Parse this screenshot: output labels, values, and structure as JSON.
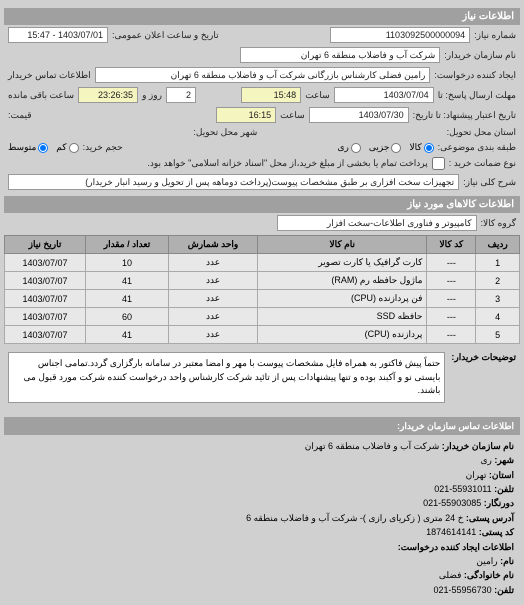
{
  "header": {
    "title": "اطلاعات نیاز"
  },
  "fields": {
    "request_no_label": "شماره نیاز:",
    "request_no": "1103092500000094",
    "public_date_label": "تاریخ و ساعت اعلان عمومی:",
    "public_date": "1403/07/01 - 15:47",
    "buyer_name_label": "نام سازمان خریدار:",
    "buyer_name": "شرکت آب و فاضلاب منطقه 6 تهران",
    "requester_label": "ایجاد کننده درخواست:",
    "requester": "رامین  فضلی کارشناس بازرگانی شرکت آب و فاضلاب منطقه 6 تهران",
    "contact_label": "اطلاعات تماس خریدار",
    "deadline_send_label": "مهلت ارسال پاسخ: تا",
    "deadline_send_date": "1403/07/04",
    "time_label": "ساعت",
    "deadline_send_time": "15:48",
    "days1": "2",
    "days_label": "روز و",
    "remaining_time": "23:26:35",
    "remaining_label": "ساعت باقی مانده",
    "validity_label": "تاریخ اعتبار پیشنهاد: تا تاریخ:",
    "validity_date": "1403/07/30",
    "validity_time": "16:15",
    "price_label": "قیمت:",
    "delivery_prov_label": "استان محل تحویل:",
    "delivery_city_label": "شهر محل تحویل:",
    "category_label": "طبقه بندی موضوعی:",
    "all": "کالا",
    "part": "جزیی",
    "rial": "ری",
    "volume_label": "حجم خرید:",
    "low": "کم",
    "med": "متوسط",
    "warranty_label": "نوع ضمانت خرید :",
    "warranty_text": "پرداخت تمام یا بخشی از مبلغ خرید،از محل \"اسناد خزانه اسلامی\" خواهد بود.",
    "desc_label": "شرح کلی نیاز:",
    "desc": "تجهیزات سخت افزاری بر طبق مشخصات پیوست(پرداخت دوماهه پس از تحویل و رسید انبار خریدار)"
  },
  "goods_section": {
    "title": "اطلاعات کالاهای مورد نیاز",
    "group_label": "گروه کالا:",
    "group": "کامپیوتر و فناوری اطلاعات-سخت افزار"
  },
  "table": {
    "cols": [
      "ردیف",
      "کد کالا",
      "نام کالا",
      "واحد شمارش",
      "تعداد / مقدار",
      "تاریخ نیاز"
    ],
    "rows": [
      [
        "1",
        "---",
        "کارت گرافیک یا کارت تصویر",
        "عدد",
        "10",
        "1403/07/07"
      ],
      [
        "2",
        "---",
        "ماژول حافظه رم (RAM)",
        "عدد",
        "41",
        "1403/07/07"
      ],
      [
        "3",
        "---",
        "فن پردازنده (CPU)",
        "عدد",
        "41",
        "1403/07/07"
      ],
      [
        "4",
        "---",
        "حافظه SSD",
        "عدد",
        "60",
        "1403/07/07"
      ],
      [
        "5",
        "---",
        "پردازنده (CPU)",
        "عدد",
        "41",
        "1403/07/07"
      ]
    ]
  },
  "note": {
    "label": "توضیحات خریدار:",
    "text": "حتماً پیش فاکتور به همراه فایل مشخصات پیوست با مهر و امضا معتبر در سامانه بارگزاری گردد.تمامی اجناس بایستی نو و آکبند بوده و تنها پیشنهادات پس از تائید شرکت کارشناس واحد درخواست کننده شرکت مورد قبول می باشند."
  },
  "bottom": {
    "title": "اطلاعات تماس سازمان خریدار:",
    "org_label": "نام سازمان خریدار:",
    "org": "شرکت آب و فاضلاب منطقه 6 تهران",
    "city_label": "شهر:",
    "city": "ری",
    "prov_label": "استان:",
    "prov": "تهران",
    "tel_label": "تلفن:",
    "tel": "55931011-021",
    "fax_label": "دورنگار:",
    "fax": "55903085-021",
    "addr_label": "آدرس پستی:",
    "addr": "خ 24 متری ( زکریای رازی )- شرکت آب و فاضلاب منطقه 6",
    "post_label": "کد پستی:",
    "post": "1874614141",
    "creator_label": "اطلاعات ایجاد کننده درخواست:",
    "name_label": "نام:",
    "name": "رامین",
    "lastname_label": "نام خانوادگی:",
    "lastname": "فضلی",
    "tel2_label": "تلفن:",
    "tel2": "55956730-021"
  }
}
